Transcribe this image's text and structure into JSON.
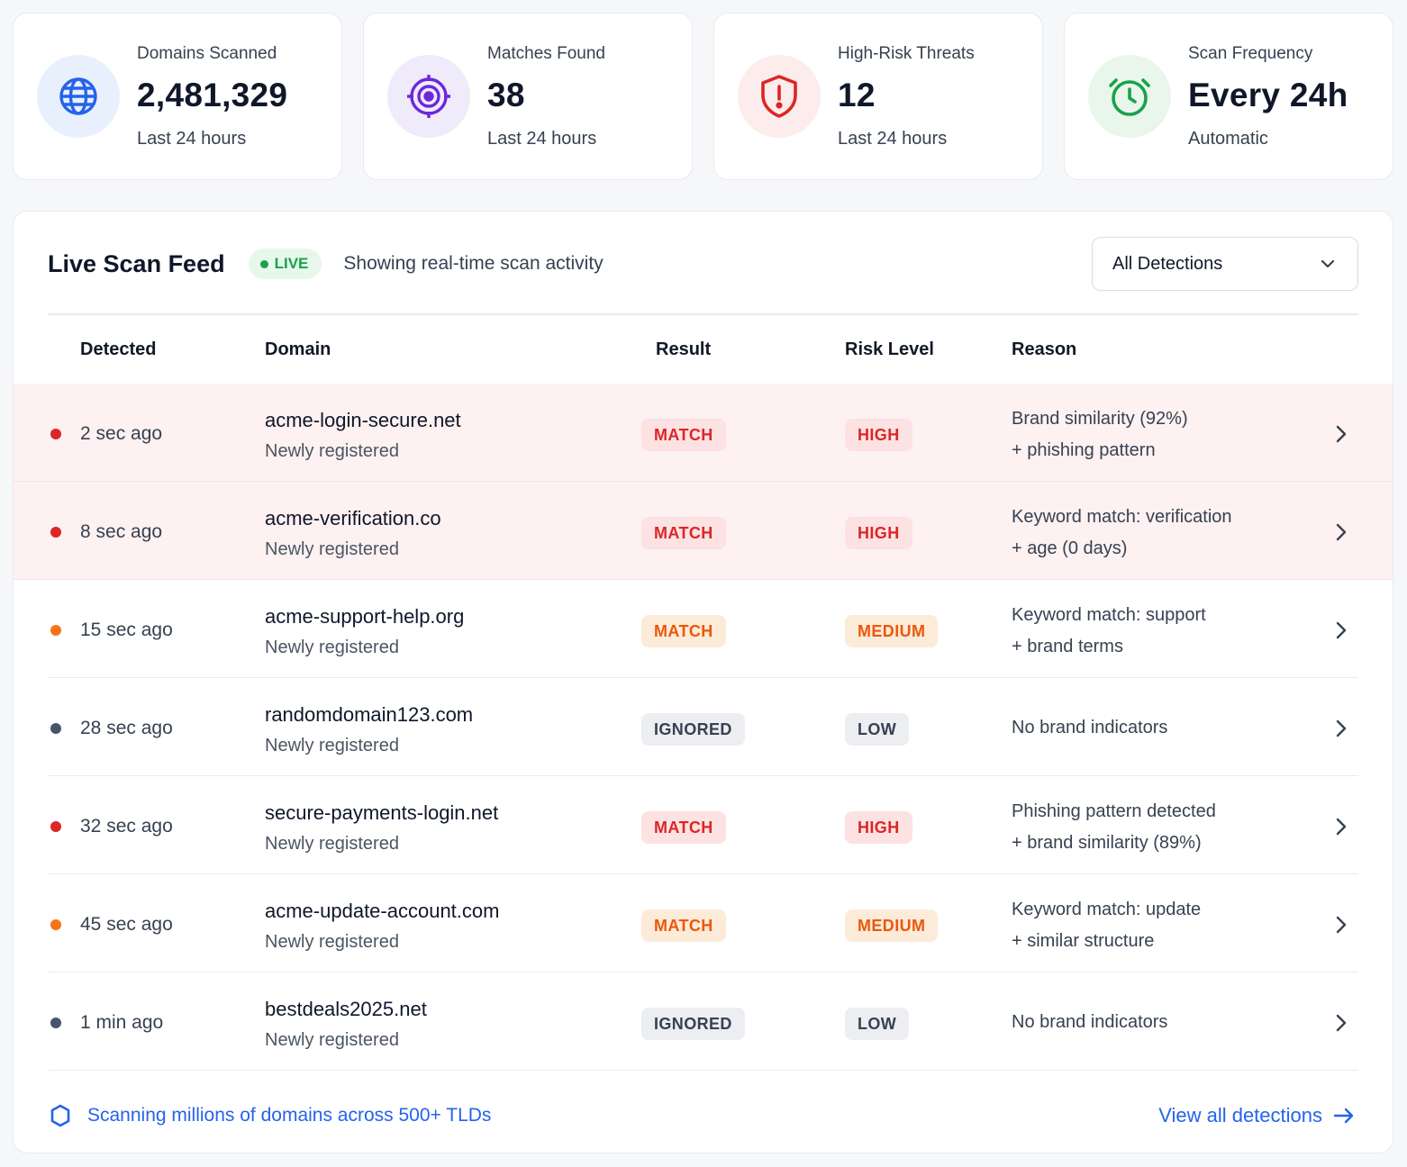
{
  "stats": [
    {
      "label": "Domains Scanned",
      "value": "2,481,329",
      "sub": "Last 24 hours",
      "icon": "globe-icon",
      "color": "#2563eb",
      "bg": "#e9f0fd"
    },
    {
      "label": "Matches Found",
      "value": "38",
      "sub": "Last 24 hours",
      "icon": "target-icon",
      "color": "#6d28d9",
      "bg": "#efebfb"
    },
    {
      "label": "High-Risk Threats",
      "value": "12",
      "sub": "Last 24 hours",
      "icon": "shield-alert-icon",
      "color": "#dc2626",
      "bg": "#fdecec"
    },
    {
      "label": "Scan Frequency",
      "value": "Every 24h",
      "sub": "Automatic",
      "icon": "clock-icon",
      "color": "#16a34a",
      "bg": "#e9f6ec"
    }
  ],
  "feed": {
    "title": "Live Scan Feed",
    "live_label": "LIVE",
    "subtitle": "Showing real-time scan activity",
    "filter_value": "All Detections",
    "columns": {
      "detected": "Detected",
      "domain": "Domain",
      "result": "Result",
      "risk": "Risk Level",
      "reason": "Reason"
    },
    "rows": [
      {
        "time": "2 sec ago",
        "domain": "acme-login-secure.net",
        "sub": "Newly registered",
        "result": "MATCH",
        "risk": "HIGH",
        "reason": [
          "Brand similarity (92%)",
          "+ phishing pattern"
        ]
      },
      {
        "time": "8 sec ago",
        "domain": "acme-verification.co",
        "sub": "Newly registered",
        "result": "MATCH",
        "risk": "HIGH",
        "reason": [
          "Keyword match: verification",
          "+ age (0 days)"
        ]
      },
      {
        "time": "15 sec ago",
        "domain": "acme-support-help.org",
        "sub": "Newly registered",
        "result": "MATCH",
        "risk": "MEDIUM",
        "reason": [
          "Keyword match: support",
          "+ brand terms"
        ]
      },
      {
        "time": "28 sec ago",
        "domain": "randomdomain123.com",
        "sub": "Newly registered",
        "result": "IGNORED",
        "risk": "LOW",
        "reason": [
          "No brand indicators"
        ]
      },
      {
        "time": "32 sec ago",
        "domain": "secure-payments-login.net",
        "sub": "Newly registered",
        "result": "MATCH",
        "risk": "HIGH",
        "reason": [
          "Phishing pattern detected",
          "+ brand similarity (89%)"
        ]
      },
      {
        "time": "45 sec ago",
        "domain": "acme-update-account.com",
        "sub": "Newly registered",
        "result": "MATCH",
        "risk": "MEDIUM",
        "reason": [
          "Keyword match: update",
          "+ similar structure"
        ]
      },
      {
        "time": "1 min ago",
        "domain": "bestdeals2025.net",
        "sub": "Newly registered",
        "result": "IGNORED",
        "risk": "LOW",
        "reason": [
          "No brand indicators"
        ]
      }
    ],
    "footer_note": "Scanning millions of domains across 500+ TLDs",
    "view_all": "View all detections"
  },
  "colors": {
    "high": "#dc2626",
    "medium": "#f97316",
    "low": "#475569",
    "accent": "#2563eb",
    "live": "#16a34a"
  }
}
